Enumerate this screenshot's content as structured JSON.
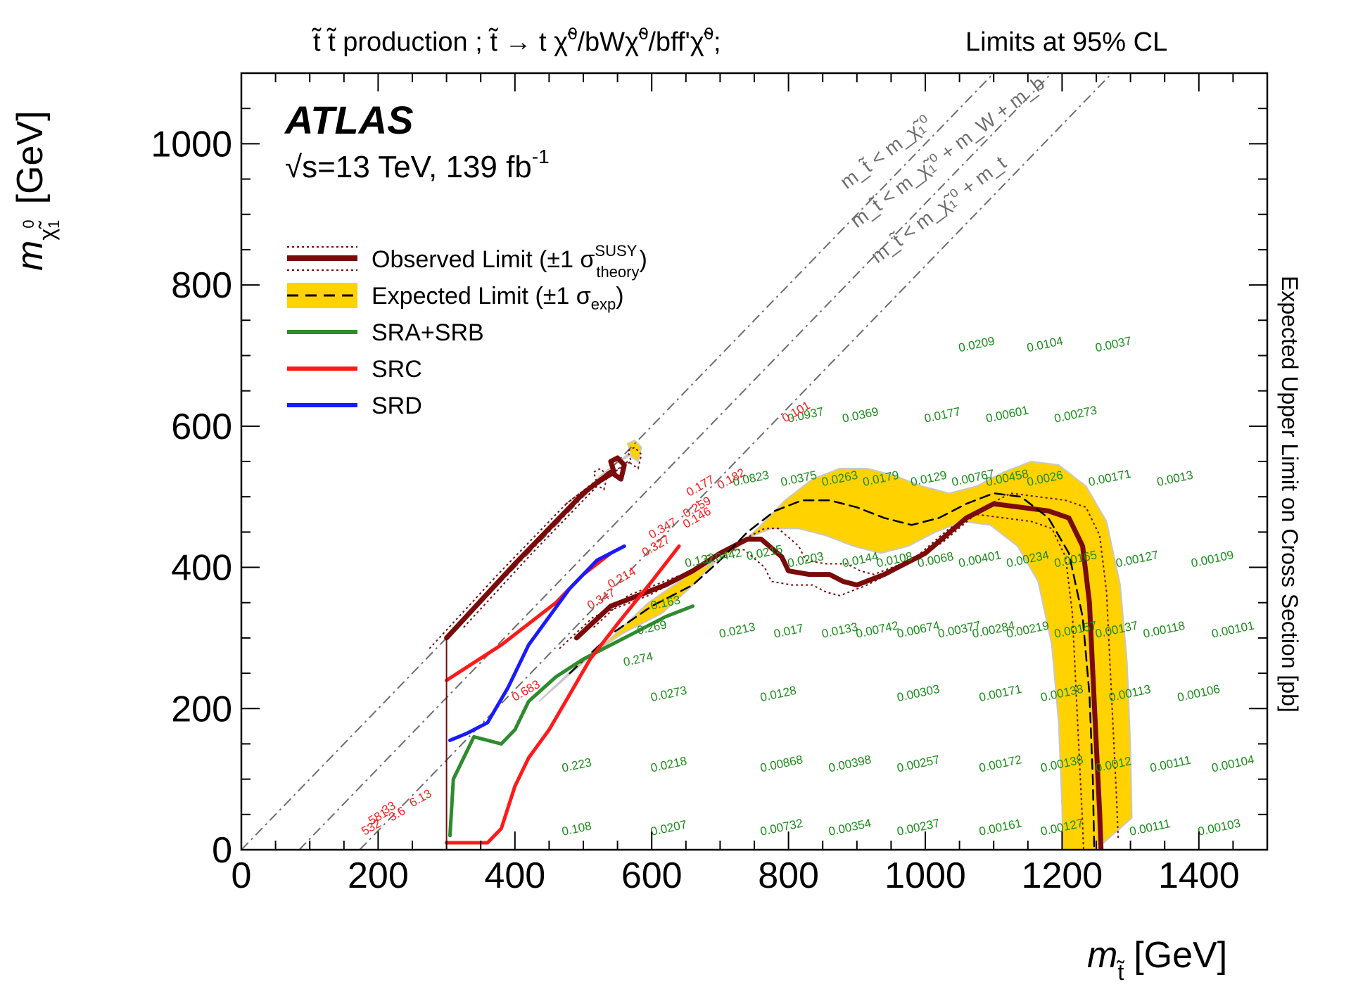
{
  "chart_data": {
    "type": "line",
    "header_left_parts": [
      "t̃ t̃ production ; t̃ → t χ̃",
      "0",
      "/bWχ̃",
      "0",
      "/bff'χ̃",
      "0",
      ";"
    ],
    "header_right": "Limits at 95% CL",
    "atlas_label": "ATLAS",
    "energy_lumi": "√s=13 TeV, 139 fb",
    "energy_lumi_sup": "-1",
    "xlabel_main": "m",
    "xlabel_sub": "t̃",
    "xlabel_unit": "[GeV]",
    "ylabel_main": "m",
    "ylabel_sub": "χ̃",
    "ylabel_sub0": "0",
    "ylabel_sub1": "1",
    "ylabel_unit": "[GeV]",
    "zlabel": "Expected Upper Limit on Cross Section [pb]",
    "xlim": [
      0,
      1500
    ],
    "ylim": [
      0,
      1100
    ],
    "xticks": [
      0,
      200,
      400,
      600,
      800,
      1000,
      1200,
      1400
    ],
    "yticks": [
      0,
      200,
      400,
      600,
      800,
      1000
    ],
    "legend": {
      "placement": "top-left",
      "entries": [
        {
          "key": "observed",
          "label": "Observed Limit (±1 σ",
          "label_sup": "SUSY",
          "label_sub": "theory",
          "label_end": ")"
        },
        {
          "key": "expected",
          "label": "Expected Limit (±1 σ",
          "label_sub": "exp",
          "label_end": ")"
        },
        {
          "key": "sra_srb",
          "label": "SRA+SRB"
        },
        {
          "key": "src",
          "label": "SRC"
        },
        {
          "key": "srd",
          "label": "SRD"
        }
      ]
    },
    "colors": {
      "observed": "#7b0a0a",
      "band": "#ffd200",
      "band_edge": "#c8c8c8",
      "sra_srb": "#2e8b2e",
      "src": "#ff1a1a",
      "srd": "#1a1aff",
      "diag": "#6e6e6e",
      "green_text": "#1a8c1a",
      "red_text": "#ff1a1a"
    },
    "kinematic_labels": [
      {
        "text": "m_t̃ < m_χ̃₁⁰",
        "x": 885,
        "y": 935
      },
      {
        "text": "m_t̃ < m_χ̃₁⁰ + m_W + m_b",
        "x": 900,
        "y": 880
      },
      {
        "text": "m_t̃ < m_χ̃₁⁰ + m_t",
        "x": 930,
        "y": 830
      }
    ],
    "series": [
      {
        "name": "Observed Limit",
        "key": "observed",
        "points": [
          [
            300,
            300
          ],
          [
            400,
            405
          ],
          [
            500,
            505
          ],
          [
            540,
            535
          ],
          [
            555,
            525
          ],
          [
            560,
            545
          ],
          [
            550,
            555
          ],
          [
            540,
            550
          ],
          [
            545,
            535
          ],
          [
            520,
            520
          ],
          [
            500,
            505
          ]
        ]
      },
      {
        "name": "Observed Limit",
        "key": "observed",
        "points": [
          [
            490,
            300
          ],
          [
            540,
            345
          ],
          [
            580,
            360
          ],
          [
            620,
            375
          ],
          [
            660,
            395
          ],
          [
            700,
            420
          ],
          [
            740,
            440
          ],
          [
            760,
            440
          ],
          [
            790,
            415
          ],
          [
            800,
            395
          ],
          [
            830,
            390
          ],
          [
            860,
            390
          ],
          [
            880,
            380
          ],
          [
            900,
            375
          ],
          [
            940,
            390
          ],
          [
            1000,
            420
          ],
          [
            1060,
            470
          ],
          [
            1100,
            490
          ],
          [
            1140,
            485
          ],
          [
            1180,
            480
          ],
          [
            1210,
            470
          ],
          [
            1230,
            430
          ],
          [
            1240,
            350
          ],
          [
            1245,
            250
          ],
          [
            1250,
            150
          ],
          [
            1255,
            50
          ],
          [
            1257,
            0
          ]
        ]
      },
      {
        "name": "Expected Limit",
        "key": "expected",
        "points": [
          [
            480,
            250
          ],
          [
            540,
            305
          ],
          [
            600,
            345
          ],
          [
            660,
            375
          ],
          [
            700,
            410
          ],
          [
            740,
            450
          ],
          [
            780,
            480
          ],
          [
            820,
            495
          ],
          [
            860,
            495
          ],
          [
            900,
            485
          ],
          [
            940,
            470
          ],
          [
            980,
            460
          ],
          [
            1020,
            470
          ],
          [
            1060,
            490
          ],
          [
            1100,
            505
          ],
          [
            1140,
            500
          ],
          [
            1180,
            470
          ],
          [
            1210,
            420
          ],
          [
            1230,
            330
          ],
          [
            1240,
            220
          ],
          [
            1245,
            100
          ],
          [
            1247,
            0
          ]
        ]
      },
      {
        "name": "SRA+SRB",
        "key": "sra_srb",
        "points": [
          [
            305,
            20
          ],
          [
            310,
            100
          ],
          [
            340,
            160
          ],
          [
            380,
            150
          ],
          [
            400,
            170
          ],
          [
            420,
            210
          ],
          [
            460,
            245
          ],
          [
            500,
            270
          ],
          [
            540,
            290
          ],
          [
            580,
            310
          ],
          [
            620,
            330
          ],
          [
            660,
            345
          ]
        ]
      },
      {
        "name": "SRC",
        "key": "src",
        "points": [
          [
            300,
            10
          ],
          [
            360,
            10
          ],
          [
            380,
            30
          ],
          [
            390,
            60
          ],
          [
            400,
            90
          ],
          [
            420,
            130
          ],
          [
            450,
            170
          ],
          [
            480,
            220
          ],
          [
            510,
            270
          ],
          [
            550,
            320
          ],
          [
            600,
            380
          ],
          [
            640,
            430
          ]
        ]
      },
      {
        "name": "SRC",
        "key": "src",
        "points": [
          [
            300,
            240
          ],
          [
            340,
            265
          ],
          [
            380,
            290
          ],
          [
            420,
            320
          ],
          [
            460,
            350
          ],
          [
            500,
            390
          ],
          [
            540,
            420
          ]
        ]
      },
      {
        "name": "SRD",
        "key": "srd",
        "points": [
          [
            305,
            155
          ],
          [
            330,
            165
          ],
          [
            360,
            180
          ],
          [
            390,
            230
          ],
          [
            420,
            290
          ],
          [
            450,
            330
          ],
          [
            480,
            370
          ],
          [
            520,
            410
          ],
          [
            560,
            430
          ]
        ]
      }
    ],
    "expected_xsec_pb": [
      {
        "x": 470,
        "y": 20,
        "v": "0.108"
      },
      {
        "x": 600,
        "y": 20,
        "v": "0.0207"
      },
      {
        "x": 760,
        "y": 20,
        "v": "0.00732"
      },
      {
        "x": 860,
        "y": 20,
        "v": "0.00354"
      },
      {
        "x": 960,
        "y": 20,
        "v": "0.00237"
      },
      {
        "x": 1080,
        "y": 20,
        "v": "0.00161"
      },
      {
        "x": 1170,
        "y": 20,
        "v": "0.00127"
      },
      {
        "x": 1300,
        "y": 20,
        "v": "0.00111"
      },
      {
        "x": 1400,
        "y": 20,
        "v": "0.00103"
      },
      {
        "x": 470,
        "y": 110,
        "v": "0.223"
      },
      {
        "x": 600,
        "y": 110,
        "v": "0.0218"
      },
      {
        "x": 760,
        "y": 110,
        "v": "0.00868"
      },
      {
        "x": 860,
        "y": 110,
        "v": "0.00398"
      },
      {
        "x": 960,
        "y": 110,
        "v": "0.00257"
      },
      {
        "x": 1080,
        "y": 110,
        "v": "0.00172"
      },
      {
        "x": 1170,
        "y": 110,
        "v": "0.00138"
      },
      {
        "x": 1250,
        "y": 110,
        "v": "0.0012"
      },
      {
        "x": 1330,
        "y": 110,
        "v": "0.00111"
      },
      {
        "x": 1420,
        "y": 110,
        "v": "0.00104"
      },
      {
        "x": 600,
        "y": 210,
        "v": "0.0273"
      },
      {
        "x": 760,
        "y": 210,
        "v": "0.0128"
      },
      {
        "x": 960,
        "y": 210,
        "v": "0.00303"
      },
      {
        "x": 1080,
        "y": 210,
        "v": "0.00171"
      },
      {
        "x": 1170,
        "y": 210,
        "v": "0.00138"
      },
      {
        "x": 1270,
        "y": 210,
        "v": "0.00113"
      },
      {
        "x": 1370,
        "y": 210,
        "v": "0.00106"
      },
      {
        "x": 700,
        "y": 300,
        "v": "0.0213"
      },
      {
        "x": 780,
        "y": 300,
        "v": "0.017"
      },
      {
        "x": 850,
        "y": 300,
        "v": "0.0133"
      },
      {
        "x": 900,
        "y": 300,
        "v": "0.00742"
      },
      {
        "x": 960,
        "y": 300,
        "v": "0.00674"
      },
      {
        "x": 1020,
        "y": 300,
        "v": "0.00377"
      },
      {
        "x": 1070,
        "y": 300,
        "v": "0.00284"
      },
      {
        "x": 1120,
        "y": 300,
        "v": "0.00219"
      },
      {
        "x": 1190,
        "y": 300,
        "v": "0.00157"
      },
      {
        "x": 1250,
        "y": 300,
        "v": "0.00137"
      },
      {
        "x": 1320,
        "y": 300,
        "v": "0.00118"
      },
      {
        "x": 1420,
        "y": 300,
        "v": "0.00101"
      },
      {
        "x": 560,
        "y": 260,
        "v": "0.274"
      },
      {
        "x": 580,
        "y": 305,
        "v": "0.269"
      },
      {
        "x": 600,
        "y": 340,
        "v": "0.163"
      },
      {
        "x": 680,
        "y": 405,
        "v": "0.0442"
      },
      {
        "x": 740,
        "y": 410,
        "v": "0.0215"
      },
      {
        "x": 800,
        "y": 400,
        "v": "0.0203"
      },
      {
        "x": 880,
        "y": 400,
        "v": "0.0144"
      },
      {
        "x": 930,
        "y": 400,
        "v": "0.0108"
      },
      {
        "x": 990,
        "y": 400,
        "v": "0.0068"
      },
      {
        "x": 1050,
        "y": 400,
        "v": "0.00401"
      },
      {
        "x": 1120,
        "y": 400,
        "v": "0.00234"
      },
      {
        "x": 1190,
        "y": 400,
        "v": "0.00165"
      },
      {
        "x": 1280,
        "y": 400,
        "v": "0.00127"
      },
      {
        "x": 1390,
        "y": 400,
        "v": "0.00109"
      },
      {
        "x": 650,
        "y": 400,
        "v": "0.132"
      },
      {
        "x": 720,
        "y": 515,
        "v": "0.0823"
      },
      {
        "x": 790,
        "y": 515,
        "v": "0.0375"
      },
      {
        "x": 850,
        "y": 515,
        "v": "0.0263"
      },
      {
        "x": 910,
        "y": 515,
        "v": "0.0179"
      },
      {
        "x": 980,
        "y": 515,
        "v": "0.0129"
      },
      {
        "x": 1040,
        "y": 515,
        "v": "0.00767"
      },
      {
        "x": 1090,
        "y": 515,
        "v": "0.00458"
      },
      {
        "x": 1150,
        "y": 515,
        "v": "0.0026"
      },
      {
        "x": 1240,
        "y": 515,
        "v": "0.00171"
      },
      {
        "x": 1340,
        "y": 515,
        "v": "0.0013"
      },
      {
        "x": 800,
        "y": 605,
        "v": "0.0937"
      },
      {
        "x": 880,
        "y": 605,
        "v": "0.0369"
      },
      {
        "x": 1000,
        "y": 605,
        "v": "0.0177"
      },
      {
        "x": 1090,
        "y": 605,
        "v": "0.00601"
      },
      {
        "x": 1190,
        "y": 605,
        "v": "0.00273"
      },
      {
        "x": 1050,
        "y": 705,
        "v": "0.0209"
      },
      {
        "x": 1150,
        "y": 705,
        "v": "0.0104"
      },
      {
        "x": 1250,
        "y": 705,
        "v": "0.0037"
      }
    ],
    "src_xsec_pb": [
      {
        "x": 795,
        "y": 605,
        "v": "0.101"
      },
      {
        "x": 655,
        "y": 500,
        "v": "0.177"
      },
      {
        "x": 700,
        "y": 510,
        "v": "0.182"
      },
      {
        "x": 650,
        "y": 470,
        "v": "0.259"
      },
      {
        "x": 650,
        "y": 455,
        "v": "0.146"
      },
      {
        "x": 600,
        "y": 440,
        "v": "0.347"
      },
      {
        "x": 590,
        "y": 415,
        "v": "0.327"
      },
      {
        "x": 540,
        "y": 370,
        "v": "0.214"
      },
      {
        "x": 510,
        "y": 340,
        "v": "0.347"
      },
      {
        "x": 400,
        "y": 210,
        "v": "0.683"
      },
      {
        "x": 180,
        "y": 20,
        "v": "532"
      },
      {
        "x": 220,
        "y": 40,
        "v": "3.6"
      },
      {
        "x": 250,
        "y": 60,
        "v": "6.13"
      },
      {
        "x": 190,
        "y": 35,
        "v": "581"
      },
      {
        "x": 210,
        "y": 50,
        "v": "33"
      }
    ]
  }
}
